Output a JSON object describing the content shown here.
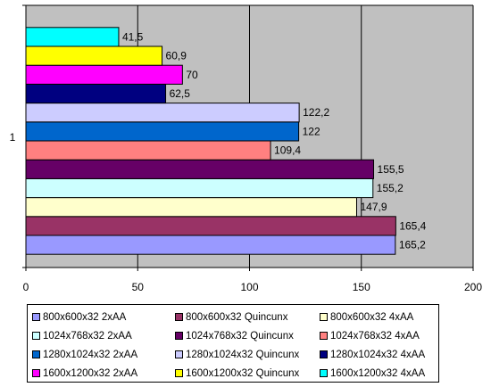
{
  "chart_data": {
    "type": "bar",
    "orientation": "horizontal",
    "categories": [
      "1"
    ],
    "x_ticks": [
      "0",
      "50",
      "100",
      "150",
      "200"
    ],
    "xlim": [
      0,
      200
    ],
    "grid": "vertical",
    "legend_position": "bottom",
    "series": [
      {
        "name": "800x600x32 2xAA",
        "value": 165.2,
        "label": "165,2",
        "color": "#9999ff"
      },
      {
        "name": "800x600x32 Quincunx",
        "value": 165.4,
        "label": "165,4",
        "color": "#993366"
      },
      {
        "name": "800x600x32 4xAA",
        "value": 147.9,
        "label": "147,9",
        "color": "#ffffcc"
      },
      {
        "name": "1024x768x32 2xAA",
        "value": 155.2,
        "label": "155,2",
        "color": "#ccffff"
      },
      {
        "name": "1024x768x32 Quincunx",
        "value": 155.5,
        "label": "155,5",
        "color": "#660066"
      },
      {
        "name": "1024x768x32 4xAA",
        "value": 109.4,
        "label": "109,4",
        "color": "#ff8080"
      },
      {
        "name": "1280x1024x32 2xAA",
        "value": 122,
        "label": "122",
        "color": "#0066cc"
      },
      {
        "name": "1280x1024x32 Quincunx",
        "value": 122.2,
        "label": "122,2",
        "color": "#ccccff"
      },
      {
        "name": "1280x1024x32 4xAA",
        "value": 62.5,
        "label": "62,5",
        "color": "#000080"
      },
      {
        "name": "1600x1200x32 2xAA",
        "value": 70,
        "label": "70",
        "color": "#ff00ff"
      },
      {
        "name": "1600x1200x32 Quincunx",
        "value": 60.9,
        "label": "60,9",
        "color": "#ffff00"
      },
      {
        "name": "1600x1200x32 4xAA",
        "value": 41.5,
        "label": "41,5",
        "color": "#00ffff"
      }
    ]
  },
  "colors": {
    "plot_background": "#c0c0c0",
    "gridline": "#000000"
  }
}
